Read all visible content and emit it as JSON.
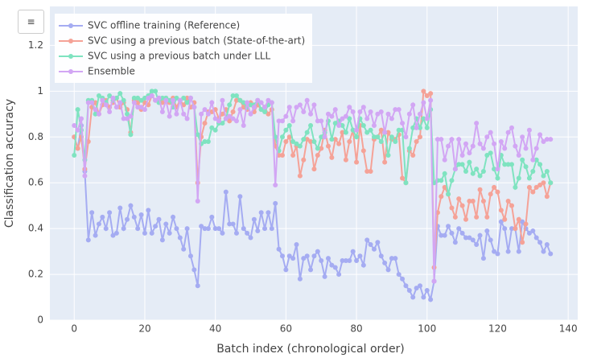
{
  "menu_button": "≡",
  "chart_data": {
    "type": "line",
    "xlabel": "Batch index (chronological order)",
    "ylabel": "Classification accuracy",
    "xlim": [
      -6.9,
      142.7
    ],
    "ylim": [
      0,
      1.37
    ],
    "xticks": [
      0,
      20,
      40,
      60,
      80,
      100,
      120,
      140
    ],
    "yticks": [
      0,
      0.2,
      0.4,
      0.6,
      0.8,
      1,
      1.2
    ],
    "grid": true,
    "legend": "top-left",
    "x": [
      0,
      1,
      2,
      3,
      4,
      5,
      6,
      7,
      8,
      9,
      10,
      11,
      12,
      13,
      14,
      15,
      16,
      17,
      18,
      19,
      20,
      21,
      22,
      23,
      24,
      25,
      26,
      27,
      28,
      29,
      30,
      31,
      32,
      33,
      34,
      35,
      36,
      37,
      38,
      39,
      40,
      41,
      42,
      43,
      44,
      45,
      46,
      47,
      48,
      49,
      50,
      51,
      52,
      53,
      54,
      55,
      56,
      57,
      58,
      59,
      60,
      61,
      62,
      63,
      64,
      65,
      66,
      67,
      68,
      69,
      70,
      71,
      72,
      73,
      74,
      75,
      76,
      77,
      78,
      79,
      80,
      81,
      82,
      83,
      84,
      85,
      86,
      87,
      88,
      89,
      90,
      91,
      92,
      93,
      94,
      95,
      96,
      97,
      98,
      99,
      100,
      101,
      102,
      103,
      104,
      105,
      106,
      107,
      108,
      109,
      110,
      111,
      112,
      113,
      114,
      115,
      116,
      117,
      118,
      119,
      120,
      121,
      122,
      123,
      124,
      125,
      126,
      127,
      128,
      129,
      130,
      131,
      132,
      133,
      134,
      135
    ],
    "series": [
      {
        "name": "SVC offline training (Reference)",
        "color": "#a5acf2",
        "values": [
          0.8,
          0.75,
          0.85,
          0.65,
          0.35,
          0.47,
          0.37,
          0.42,
          0.45,
          0.4,
          0.47,
          0.37,
          0.38,
          0.49,
          0.4,
          0.44,
          0.5,
          0.45,
          0.4,
          0.46,
          0.38,
          0.48,
          0.38,
          0.41,
          0.44,
          0.35,
          0.42,
          0.38,
          0.45,
          0.4,
          0.36,
          0.31,
          0.4,
          0.28,
          0.22,
          0.15,
          0.41,
          0.4,
          0.4,
          0.45,
          0.4,
          0.4,
          0.38,
          0.56,
          0.42,
          0.42,
          0.38,
          0.54,
          0.4,
          0.38,
          0.36,
          0.44,
          0.39,
          0.47,
          0.4,
          0.47,
          0.4,
          0.51,
          0.31,
          0.28,
          0.22,
          0.28,
          0.27,
          0.33,
          0.18,
          0.27,
          0.28,
          0.22,
          0.28,
          0.3,
          0.26,
          0.19,
          0.27,
          0.24,
          0.23,
          0.2,
          0.26,
          0.26,
          0.26,
          0.3,
          0.26,
          0.28,
          0.24,
          0.35,
          0.33,
          0.31,
          0.34,
          0.28,
          0.25,
          0.22,
          0.27,
          0.27,
          0.2,
          0.18,
          0.15,
          0.13,
          0.1,
          0.14,
          0.15,
          0.1,
          0.13,
          0.09,
          0.17,
          0.41,
          0.37,
          0.37,
          0.41,
          0.38,
          0.34,
          0.4,
          0.38,
          0.36,
          0.36,
          0.35,
          0.33,
          0.37,
          0.27,
          0.39,
          0.35,
          0.3,
          0.29,
          0.43,
          0.4,
          0.3,
          0.4,
          0.4,
          0.3,
          0.43,
          0.4,
          0.38,
          0.39,
          0.36,
          0.34,
          0.3,
          0.33,
          0.29
        ]
      },
      {
        "name": "SVC using a previous batch (State-of-the-art)",
        "color": "#f5a297",
        "values": [
          0.8,
          0.75,
          0.8,
          0.66,
          0.78,
          0.93,
          0.95,
          0.9,
          0.94,
          0.96,
          0.93,
          0.95,
          0.97,
          0.93,
          0.95,
          0.92,
          0.82,
          0.96,
          0.95,
          0.92,
          0.95,
          0.94,
          0.98,
          0.96,
          0.97,
          0.95,
          0.97,
          0.95,
          0.97,
          0.93,
          0.96,
          0.94,
          0.97,
          0.93,
          0.95,
          0.6,
          0.8,
          0.86,
          0.91,
          0.91,
          0.92,
          0.88,
          0.9,
          0.92,
          0.87,
          0.91,
          0.96,
          0.96,
          0.93,
          0.92,
          0.95,
          0.91,
          0.94,
          0.92,
          0.93,
          0.9,
          0.92,
          0.76,
          0.72,
          0.72,
          0.78,
          0.8,
          0.72,
          0.76,
          0.63,
          0.7,
          0.79,
          0.78,
          0.66,
          0.72,
          0.75,
          0.83,
          0.76,
          0.71,
          0.79,
          0.77,
          0.82,
          0.7,
          0.78,
          0.83,
          0.69,
          0.85,
          0.74,
          0.65,
          0.65,
          0.79,
          0.8,
          0.83,
          0.69,
          0.82,
          0.79,
          0.79,
          0.81,
          0.62,
          0.6,
          0.74,
          0.72,
          0.78,
          0.8,
          1.0,
          0.98,
          0.99,
          0.23,
          0.47,
          0.54,
          0.58,
          0.55,
          0.49,
          0.45,
          0.53,
          0.5,
          0.44,
          0.52,
          0.52,
          0.45,
          0.57,
          0.52,
          0.45,
          0.55,
          0.58,
          0.56,
          0.48,
          0.44,
          0.52,
          0.5,
          0.4,
          0.44,
          0.34,
          0.42,
          0.58,
          0.56,
          0.58,
          0.59,
          0.6,
          0.54,
          0.6
        ]
      },
      {
        "name": "SVC using a previous batch under LLL",
        "color": "#7fe3c0",
        "values": [
          0.72,
          0.92,
          0.83,
          0.7,
          0.96,
          0.96,
          0.9,
          0.98,
          0.97,
          0.95,
          0.98,
          0.96,
          0.97,
          0.99,
          0.96,
          0.9,
          0.81,
          0.97,
          0.97,
          0.96,
          0.97,
          0.98,
          1.0,
          1.0,
          0.95,
          0.97,
          0.97,
          0.96,
          0.93,
          0.97,
          0.96,
          0.97,
          0.95,
          0.97,
          0.93,
          0.81,
          0.77,
          0.78,
          0.78,
          0.84,
          0.83,
          0.86,
          0.86,
          0.88,
          0.94,
          0.98,
          0.98,
          0.96,
          0.95,
          0.93,
          0.94,
          0.94,
          0.96,
          0.92,
          0.91,
          0.94,
          0.95,
          0.8,
          0.74,
          0.8,
          0.83,
          0.85,
          0.78,
          0.77,
          0.76,
          0.79,
          0.82,
          0.85,
          0.78,
          0.75,
          0.8,
          0.82,
          0.87,
          0.79,
          0.86,
          0.87,
          0.85,
          0.82,
          0.88,
          0.83,
          0.8,
          0.88,
          0.85,
          0.82,
          0.83,
          0.8,
          0.8,
          0.78,
          0.82,
          0.72,
          0.8,
          0.78,
          0.83,
          0.83,
          0.6,
          0.75,
          0.84,
          0.88,
          0.84,
          0.88,
          0.84,
          0.92,
          0.6,
          0.61,
          0.61,
          0.64,
          0.55,
          0.61,
          0.66,
          0.68,
          0.68,
          0.65,
          0.69,
          0.64,
          0.66,
          0.63,
          0.65,
          0.72,
          0.73,
          0.66,
          0.62,
          0.72,
          0.68,
          0.68,
          0.68,
          0.58,
          0.62,
          0.7,
          0.67,
          0.62,
          0.65,
          0.7,
          0.68,
          0.63,
          0.65,
          0.6
        ]
      },
      {
        "name": "Ensemble",
        "color": "#d2a6f4",
        "values": [
          0.85,
          0.83,
          0.88,
          0.63,
          0.95,
          0.95,
          0.92,
          0.9,
          0.96,
          0.94,
          0.91,
          0.97,
          0.93,
          0.95,
          0.88,
          0.88,
          0.89,
          0.95,
          0.93,
          0.93,
          0.92,
          0.97,
          0.98,
          0.96,
          0.97,
          0.91,
          0.96,
          0.89,
          0.96,
          0.9,
          0.96,
          0.9,
          0.88,
          0.97,
          0.93,
          0.52,
          0.9,
          0.92,
          0.9,
          0.95,
          0.88,
          0.87,
          0.96,
          0.88,
          0.89,
          0.88,
          0.87,
          0.92,
          0.85,
          0.95,
          0.9,
          0.93,
          0.96,
          0.95,
          0.93,
          0.96,
          0.95,
          0.59,
          0.87,
          0.87,
          0.89,
          0.93,
          0.87,
          0.93,
          0.94,
          0.91,
          0.96,
          0.9,
          0.94,
          0.87,
          0.87,
          0.8,
          0.9,
          0.89,
          0.92,
          0.85,
          0.88,
          0.89,
          0.93,
          0.91,
          0.83,
          0.91,
          0.93,
          0.88,
          0.91,
          0.85,
          0.9,
          0.91,
          0.82,
          0.9,
          0.88,
          0.92,
          0.92,
          0.86,
          0.8,
          0.9,
          0.94,
          0.84,
          0.9,
          0.95,
          0.88,
          0.96,
          0.17,
          0.79,
          0.79,
          0.7,
          0.76,
          0.79,
          0.66,
          0.79,
          0.72,
          0.77,
          0.73,
          0.76,
          0.86,
          0.77,
          0.75,
          0.8,
          0.82,
          0.77,
          0.66,
          0.78,
          0.75,
          0.82,
          0.84,
          0.76,
          0.72,
          0.8,
          0.75,
          0.83,
          0.7,
          0.75,
          0.81,
          0.78,
          0.79,
          0.79
        ]
      }
    ]
  }
}
